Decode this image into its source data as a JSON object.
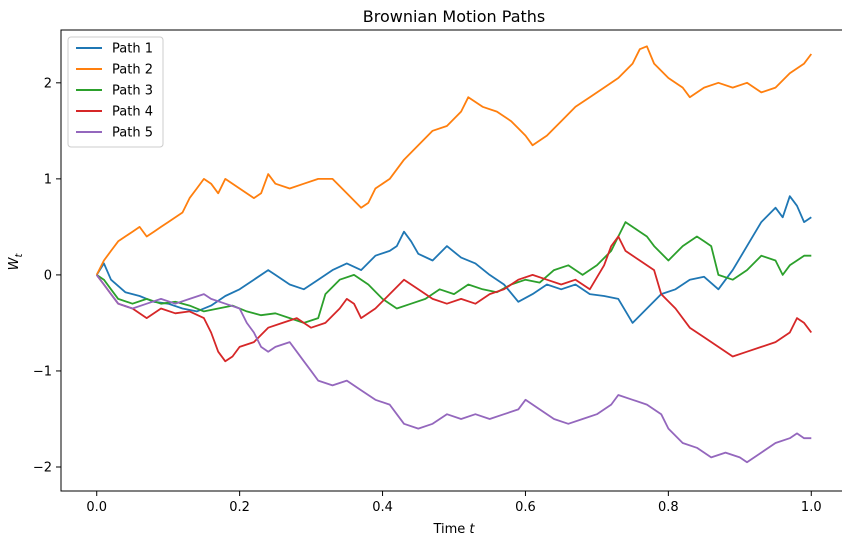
{
  "chart_data": {
    "type": "line",
    "title": "Brownian Motion Paths",
    "xlabel": "Time",
    "xlabel_var": "t",
    "ylabel_var": "W",
    "ylabel_sub": "t",
    "xlim": [
      -0.05,
      1.05
    ],
    "ylim": [
      -2.25,
      2.55
    ],
    "xticks": [
      0.0,
      0.2,
      0.4,
      0.6,
      0.8,
      1.0
    ],
    "xtick_labels": [
      "0.0",
      "0.2",
      "0.4",
      "0.6",
      "0.8",
      "1.0"
    ],
    "yticks": [
      -2,
      -1,
      0,
      1,
      2
    ],
    "ytick_labels": [
      "−2",
      "−1",
      "0",
      "1",
      "2"
    ],
    "legend_position": "top-left",
    "series": [
      {
        "name": "Path 1",
        "color": "#1f77b4",
        "points": [
          [
            0.0,
            0.0
          ],
          [
            0.01,
            0.12
          ],
          [
            0.02,
            -0.05
          ],
          [
            0.04,
            -0.18
          ],
          [
            0.06,
            -0.22
          ],
          [
            0.08,
            -0.28
          ],
          [
            0.1,
            -0.3
          ],
          [
            0.12,
            -0.35
          ],
          [
            0.14,
            -0.38
          ],
          [
            0.16,
            -0.32
          ],
          [
            0.18,
            -0.22
          ],
          [
            0.2,
            -0.15
          ],
          [
            0.22,
            -0.05
          ],
          [
            0.24,
            0.05
          ],
          [
            0.25,
            0.0
          ],
          [
            0.27,
            -0.1
          ],
          [
            0.29,
            -0.15
          ],
          [
            0.31,
            -0.05
          ],
          [
            0.33,
            0.05
          ],
          [
            0.35,
            0.12
          ],
          [
            0.37,
            0.05
          ],
          [
            0.39,
            0.2
          ],
          [
            0.41,
            0.25
          ],
          [
            0.42,
            0.3
          ],
          [
            0.43,
            0.45
          ],
          [
            0.44,
            0.35
          ],
          [
            0.45,
            0.22
          ],
          [
            0.47,
            0.15
          ],
          [
            0.49,
            0.3
          ],
          [
            0.51,
            0.18
          ],
          [
            0.53,
            0.12
          ],
          [
            0.55,
            0.0
          ],
          [
            0.57,
            -0.1
          ],
          [
            0.59,
            -0.28
          ],
          [
            0.61,
            -0.2
          ],
          [
            0.63,
            -0.1
          ],
          [
            0.65,
            -0.15
          ],
          [
            0.67,
            -0.1
          ],
          [
            0.69,
            -0.2
          ],
          [
            0.71,
            -0.22
          ],
          [
            0.73,
            -0.25
          ],
          [
            0.75,
            -0.5
          ],
          [
            0.77,
            -0.35
          ],
          [
            0.79,
            -0.2
          ],
          [
            0.81,
            -0.15
          ],
          [
            0.83,
            -0.05
          ],
          [
            0.85,
            -0.02
          ],
          [
            0.87,
            -0.15
          ],
          [
            0.89,
            0.05
          ],
          [
            0.91,
            0.3
          ],
          [
            0.93,
            0.55
          ],
          [
            0.95,
            0.7
          ],
          [
            0.96,
            0.6
          ],
          [
            0.97,
            0.82
          ],
          [
            0.98,
            0.72
          ],
          [
            0.99,
            0.55
          ],
          [
            1.0,
            0.6
          ]
        ]
      },
      {
        "name": "Path 2",
        "color": "#ff7f0e",
        "points": [
          [
            0.0,
            0.0
          ],
          [
            0.01,
            0.15
          ],
          [
            0.02,
            0.25
          ],
          [
            0.03,
            0.35
          ],
          [
            0.04,
            0.4
          ],
          [
            0.05,
            0.45
          ],
          [
            0.06,
            0.5
          ],
          [
            0.07,
            0.4
          ],
          [
            0.08,
            0.45
          ],
          [
            0.09,
            0.5
          ],
          [
            0.1,
            0.55
          ],
          [
            0.12,
            0.65
          ],
          [
            0.13,
            0.8
          ],
          [
            0.14,
            0.9
          ],
          [
            0.15,
            1.0
          ],
          [
            0.16,
            0.95
          ],
          [
            0.17,
            0.85
          ],
          [
            0.18,
            1.0
          ],
          [
            0.2,
            0.9
          ],
          [
            0.22,
            0.8
          ],
          [
            0.23,
            0.85
          ],
          [
            0.24,
            1.05
          ],
          [
            0.25,
            0.95
          ],
          [
            0.27,
            0.9
          ],
          [
            0.29,
            0.95
          ],
          [
            0.31,
            1.0
          ],
          [
            0.33,
            1.0
          ],
          [
            0.35,
            0.85
          ],
          [
            0.37,
            0.7
          ],
          [
            0.38,
            0.75
          ],
          [
            0.39,
            0.9
          ],
          [
            0.41,
            1.0
          ],
          [
            0.43,
            1.2
          ],
          [
            0.45,
            1.35
          ],
          [
            0.47,
            1.5
          ],
          [
            0.49,
            1.55
          ],
          [
            0.51,
            1.7
          ],
          [
            0.52,
            1.85
          ],
          [
            0.54,
            1.75
          ],
          [
            0.56,
            1.7
          ],
          [
            0.58,
            1.6
          ],
          [
            0.6,
            1.45
          ],
          [
            0.61,
            1.35
          ],
          [
            0.63,
            1.45
          ],
          [
            0.65,
            1.6
          ],
          [
            0.67,
            1.75
          ],
          [
            0.69,
            1.85
          ],
          [
            0.71,
            1.95
          ],
          [
            0.73,
            2.05
          ],
          [
            0.75,
            2.2
          ],
          [
            0.76,
            2.35
          ],
          [
            0.77,
            2.38
          ],
          [
            0.78,
            2.2
          ],
          [
            0.8,
            2.05
          ],
          [
            0.82,
            1.95
          ],
          [
            0.83,
            1.85
          ],
          [
            0.85,
            1.95
          ],
          [
            0.87,
            2.0
          ],
          [
            0.89,
            1.95
          ],
          [
            0.91,
            2.0
          ],
          [
            0.93,
            1.9
          ],
          [
            0.95,
            1.95
          ],
          [
            0.97,
            2.1
          ],
          [
            0.99,
            2.2
          ],
          [
            1.0,
            2.3
          ]
        ]
      },
      {
        "name": "Path 3",
        "color": "#2ca02c",
        "points": [
          [
            0.0,
            0.0
          ],
          [
            0.01,
            -0.05
          ],
          [
            0.02,
            -0.15
          ],
          [
            0.03,
            -0.25
          ],
          [
            0.05,
            -0.3
          ],
          [
            0.07,
            -0.25
          ],
          [
            0.09,
            -0.3
          ],
          [
            0.11,
            -0.28
          ],
          [
            0.13,
            -0.32
          ],
          [
            0.15,
            -0.38
          ],
          [
            0.17,
            -0.35
          ],
          [
            0.19,
            -0.32
          ],
          [
            0.21,
            -0.38
          ],
          [
            0.23,
            -0.42
          ],
          [
            0.25,
            -0.4
          ],
          [
            0.27,
            -0.45
          ],
          [
            0.29,
            -0.5
          ],
          [
            0.31,
            -0.45
          ],
          [
            0.32,
            -0.2
          ],
          [
            0.34,
            -0.05
          ],
          [
            0.36,
            0.0
          ],
          [
            0.38,
            -0.1
          ],
          [
            0.4,
            -0.25
          ],
          [
            0.42,
            -0.35
          ],
          [
            0.44,
            -0.3
          ],
          [
            0.46,
            -0.25
          ],
          [
            0.48,
            -0.15
          ],
          [
            0.5,
            -0.2
          ],
          [
            0.52,
            -0.1
          ],
          [
            0.54,
            -0.15
          ],
          [
            0.56,
            -0.18
          ],
          [
            0.58,
            -0.1
          ],
          [
            0.6,
            -0.05
          ],
          [
            0.62,
            -0.08
          ],
          [
            0.64,
            0.05
          ],
          [
            0.66,
            0.1
          ],
          [
            0.68,
            0.0
          ],
          [
            0.7,
            0.1
          ],
          [
            0.72,
            0.25
          ],
          [
            0.73,
            0.4
          ],
          [
            0.74,
            0.55
          ],
          [
            0.75,
            0.5
          ],
          [
            0.76,
            0.45
          ],
          [
            0.77,
            0.4
          ],
          [
            0.78,
            0.3
          ],
          [
            0.8,
            0.15
          ],
          [
            0.82,
            0.3
          ],
          [
            0.84,
            0.4
          ],
          [
            0.85,
            0.35
          ],
          [
            0.86,
            0.3
          ],
          [
            0.87,
            0.0
          ],
          [
            0.89,
            -0.05
          ],
          [
            0.91,
            0.05
          ],
          [
            0.93,
            0.2
          ],
          [
            0.95,
            0.15
          ],
          [
            0.96,
            0.0
          ],
          [
            0.97,
            0.1
          ],
          [
            0.98,
            0.15
          ],
          [
            0.99,
            0.2
          ],
          [
            1.0,
            0.2
          ]
        ]
      },
      {
        "name": "Path 4",
        "color": "#d62728",
        "points": [
          [
            0.0,
            0.0
          ],
          [
            0.01,
            -0.1
          ],
          [
            0.02,
            -0.2
          ],
          [
            0.03,
            -0.3
          ],
          [
            0.05,
            -0.35
          ],
          [
            0.07,
            -0.45
          ],
          [
            0.09,
            -0.35
          ],
          [
            0.11,
            -0.4
          ],
          [
            0.13,
            -0.38
          ],
          [
            0.15,
            -0.45
          ],
          [
            0.16,
            -0.6
          ],
          [
            0.17,
            -0.8
          ],
          [
            0.18,
            -0.9
          ],
          [
            0.19,
            -0.85
          ],
          [
            0.2,
            -0.75
          ],
          [
            0.22,
            -0.7
          ],
          [
            0.24,
            -0.55
          ],
          [
            0.26,
            -0.5
          ],
          [
            0.28,
            -0.45
          ],
          [
            0.3,
            -0.55
          ],
          [
            0.32,
            -0.5
          ],
          [
            0.34,
            -0.35
          ],
          [
            0.35,
            -0.25
          ],
          [
            0.36,
            -0.3
          ],
          [
            0.37,
            -0.45
          ],
          [
            0.39,
            -0.35
          ],
          [
            0.41,
            -0.2
          ],
          [
            0.43,
            -0.05
          ],
          [
            0.45,
            -0.15
          ],
          [
            0.47,
            -0.25
          ],
          [
            0.49,
            -0.3
          ],
          [
            0.51,
            -0.25
          ],
          [
            0.53,
            -0.3
          ],
          [
            0.55,
            -0.2
          ],
          [
            0.57,
            -0.15
          ],
          [
            0.59,
            -0.05
          ],
          [
            0.61,
            0.0
          ],
          [
            0.63,
            -0.05
          ],
          [
            0.65,
            -0.1
          ],
          [
            0.67,
            -0.05
          ],
          [
            0.69,
            -0.15
          ],
          [
            0.71,
            0.1
          ],
          [
            0.72,
            0.3
          ],
          [
            0.73,
            0.4
          ],
          [
            0.74,
            0.25
          ],
          [
            0.76,
            0.15
          ],
          [
            0.78,
            0.05
          ],
          [
            0.79,
            -0.2
          ],
          [
            0.81,
            -0.35
          ],
          [
            0.83,
            -0.55
          ],
          [
            0.85,
            -0.65
          ],
          [
            0.87,
            -0.75
          ],
          [
            0.89,
            -0.85
          ],
          [
            0.91,
            -0.8
          ],
          [
            0.93,
            -0.75
          ],
          [
            0.95,
            -0.7
          ],
          [
            0.97,
            -0.6
          ],
          [
            0.98,
            -0.45
          ],
          [
            0.99,
            -0.5
          ],
          [
            1.0,
            -0.6
          ]
        ]
      },
      {
        "name": "Path 5",
        "color": "#9467bd",
        "points": [
          [
            0.0,
            0.0
          ],
          [
            0.01,
            -0.1
          ],
          [
            0.02,
            -0.2
          ],
          [
            0.03,
            -0.3
          ],
          [
            0.05,
            -0.35
          ],
          [
            0.07,
            -0.3
          ],
          [
            0.09,
            -0.25
          ],
          [
            0.11,
            -0.3
          ],
          [
            0.13,
            -0.25
          ],
          [
            0.15,
            -0.2
          ],
          [
            0.16,
            -0.25
          ],
          [
            0.18,
            -0.3
          ],
          [
            0.2,
            -0.35
          ],
          [
            0.21,
            -0.5
          ],
          [
            0.22,
            -0.6
          ],
          [
            0.23,
            -0.75
          ],
          [
            0.24,
            -0.8
          ],
          [
            0.25,
            -0.75
          ],
          [
            0.27,
            -0.7
          ],
          [
            0.28,
            -0.8
          ],
          [
            0.29,
            -0.9
          ],
          [
            0.3,
            -1.0
          ],
          [
            0.31,
            -1.1
          ],
          [
            0.33,
            -1.15
          ],
          [
            0.35,
            -1.1
          ],
          [
            0.37,
            -1.2
          ],
          [
            0.39,
            -1.3
          ],
          [
            0.41,
            -1.35
          ],
          [
            0.42,
            -1.45
          ],
          [
            0.43,
            -1.55
          ],
          [
            0.45,
            -1.6
          ],
          [
            0.47,
            -1.55
          ],
          [
            0.49,
            -1.45
          ],
          [
            0.51,
            -1.5
          ],
          [
            0.53,
            -1.45
          ],
          [
            0.55,
            -1.5
          ],
          [
            0.57,
            -1.45
          ],
          [
            0.59,
            -1.4
          ],
          [
            0.6,
            -1.3
          ],
          [
            0.62,
            -1.4
          ],
          [
            0.64,
            -1.5
          ],
          [
            0.66,
            -1.55
          ],
          [
            0.68,
            -1.5
          ],
          [
            0.7,
            -1.45
          ],
          [
            0.72,
            -1.35
          ],
          [
            0.73,
            -1.25
          ],
          [
            0.75,
            -1.3
          ],
          [
            0.77,
            -1.35
          ],
          [
            0.79,
            -1.45
          ],
          [
            0.8,
            -1.6
          ],
          [
            0.82,
            -1.75
          ],
          [
            0.84,
            -1.8
          ],
          [
            0.86,
            -1.9
          ],
          [
            0.88,
            -1.85
          ],
          [
            0.9,
            -1.9
          ],
          [
            0.91,
            -1.95
          ],
          [
            0.93,
            -1.85
          ],
          [
            0.95,
            -1.75
          ],
          [
            0.97,
            -1.7
          ],
          [
            0.98,
            -1.65
          ],
          [
            0.99,
            -1.7
          ],
          [
            1.0,
            -1.7
          ]
        ]
      }
    ]
  }
}
